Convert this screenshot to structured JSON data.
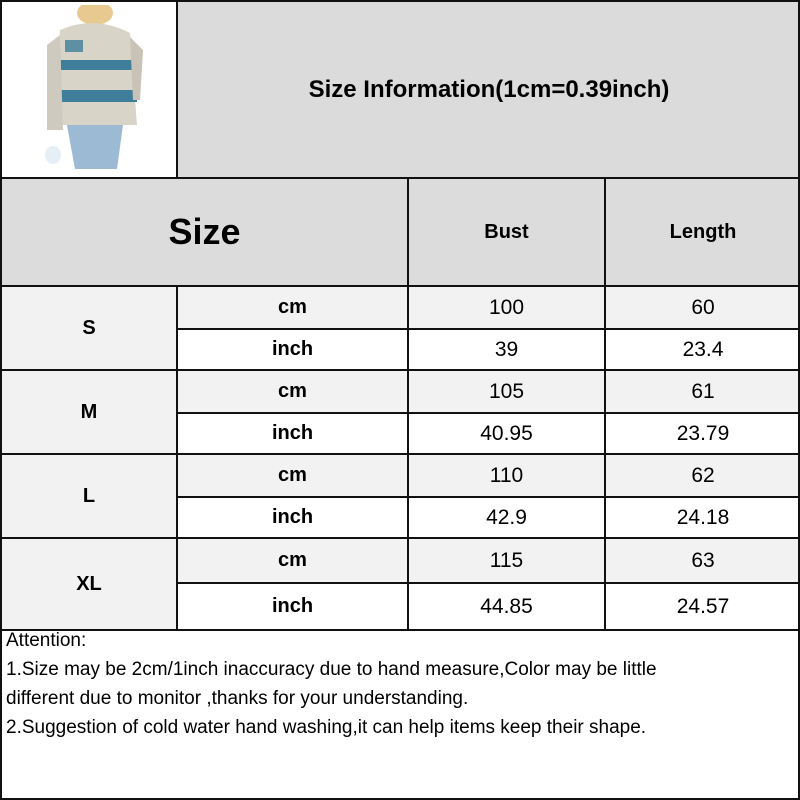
{
  "title": "Size Information(1cm=0.39inch)",
  "product_image": "hoodie-model-photo",
  "header": {
    "size": "Size",
    "bust": "Bust",
    "length": "Length"
  },
  "rows": [
    {
      "size": "S",
      "cm_label": "cm",
      "inch_label": "inch",
      "bust_cm": "100",
      "length_cm": "60",
      "bust_inch": "39",
      "length_inch": "23.4"
    },
    {
      "size": "M",
      "cm_label": "cm",
      "inch_label": "inch",
      "bust_cm": "105",
      "length_cm": "61",
      "bust_inch": "40.95",
      "length_inch": "23.79"
    },
    {
      "size": "L",
      "cm_label": "cm",
      "inch_label": "inch",
      "bust_cm": "110",
      "length_cm": "62",
      "bust_inch": "42.9",
      "length_inch": "24.18"
    },
    {
      "size": "XL",
      "cm_label": "cm",
      "inch_label": "inch",
      "bust_cm": "115",
      "length_cm": "63",
      "bust_inch": "44.85",
      "length_inch": "24.57"
    }
  ],
  "attention": {
    "heading": "Attention:",
    "line1": "1.Size may be 2cm/1inch inaccuracy due to hand measure,Color may be little",
    "line1b": "different due to monitor ,thanks for your understanding.",
    "line2": "2.Suggestion of cold water hand washing,it can help items keep their shape."
  }
}
